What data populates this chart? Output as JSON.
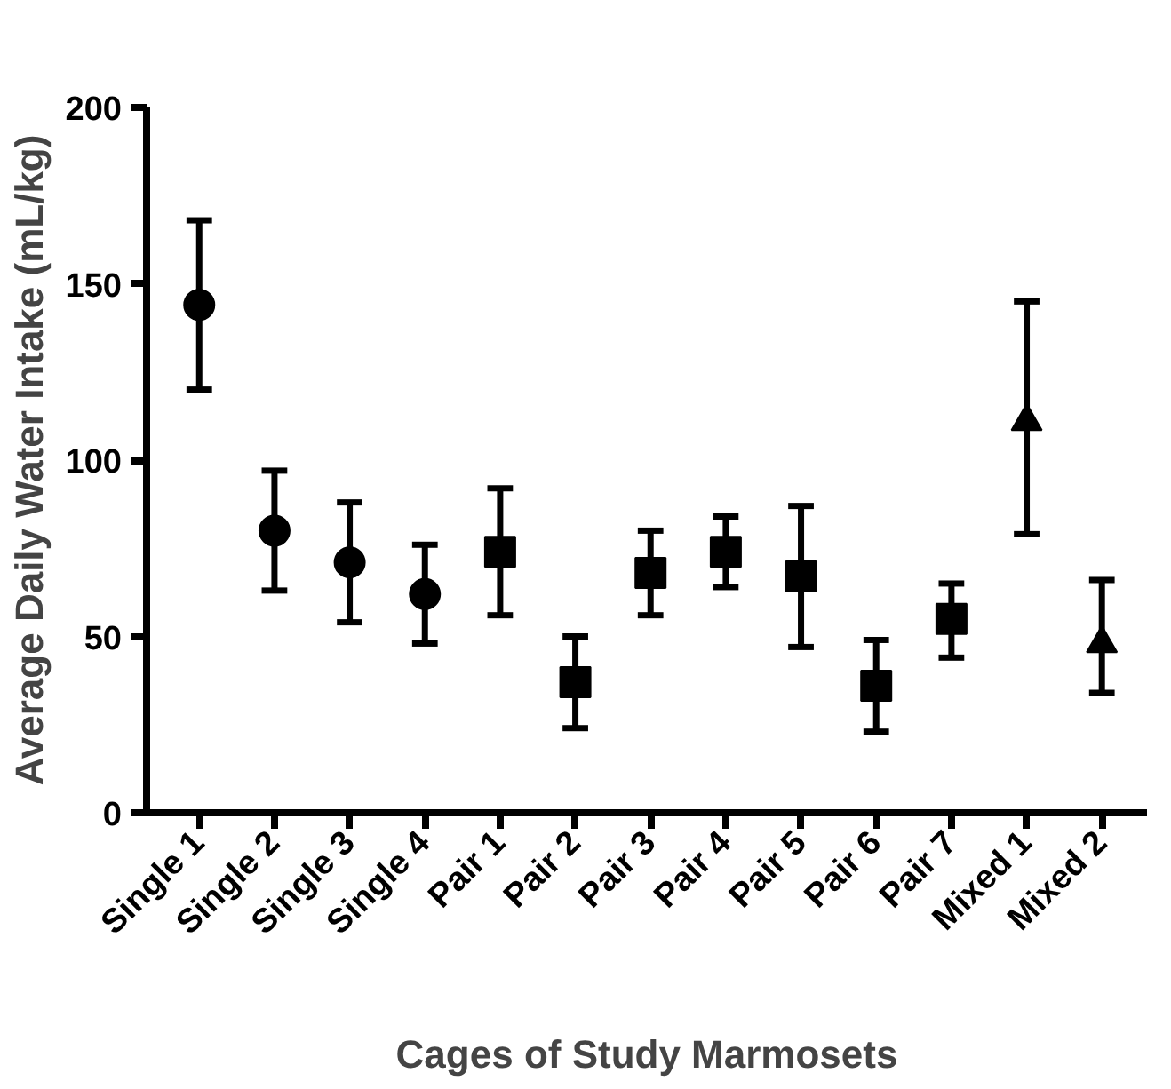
{
  "chart_data": {
    "type": "scatter",
    "xlabel": "Cages of Study Marmosets",
    "ylabel": "Average Daily Water Intake (mL/kg)",
    "categories": [
      "Single 1",
      "Single 2",
      "Single 3",
      "Single 4",
      "Pair 1",
      "Pair 2",
      "Pair 3",
      "Pair 4",
      "Pair 5",
      "Pair 6",
      "Pair 7",
      "Mixed 1",
      "Mixed 2"
    ],
    "ylim": [
      0,
      200
    ],
    "yticks": [
      0,
      50,
      100,
      150,
      200
    ],
    "grid": false,
    "series": [
      {
        "color": "#000000",
        "marker": "circle",
        "x": [
          "Single 1",
          "Single 2",
          "Single 3",
          "Single 4"
        ],
        "values": [
          144,
          80,
          71,
          62
        ],
        "errors": [
          [
            120,
            168
          ],
          [
            63,
            97
          ],
          [
            54,
            88
          ],
          [
            48,
            76
          ]
        ]
      },
      {
        "color": "#000000",
        "marker": "square",
        "x": [
          "Pair 1",
          "Pair 2",
          "Pair 3",
          "Pair 4",
          "Pair 5",
          "Pair 6",
          "Pair 7"
        ],
        "values": [
          74,
          37,
          68,
          74,
          67,
          36,
          55
        ],
        "errors": [
          [
            56,
            92
          ],
          [
            24,
            50
          ],
          [
            56,
            80
          ],
          [
            64,
            84
          ],
          [
            47,
            87
          ],
          [
            23,
            49
          ],
          [
            44,
            65
          ]
        ]
      },
      {
        "color": "#000000",
        "marker": "triangle",
        "x": [
          "Mixed 1",
          "Mixed 2"
        ],
        "values": [
          111,
          48
        ],
        "errors": [
          [
            79,
            145
          ],
          [
            34,
            66
          ]
        ]
      }
    ]
  }
}
